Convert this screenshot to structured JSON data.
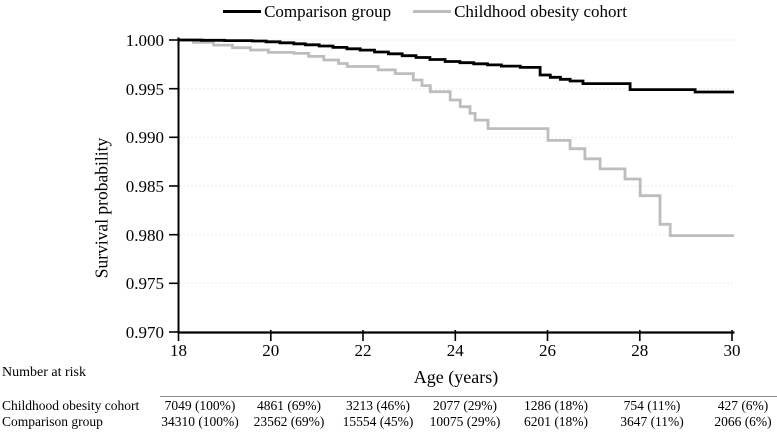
{
  "legend": [
    {
      "label": "Comparison group",
      "color": "#000000"
    },
    {
      "label": "Childhood obesity cohort",
      "color": "#bdbdbd"
    }
  ],
  "chart_data": {
    "type": "line",
    "subtype": "kaplan-meier-step",
    "title": "",
    "xlabel": "Age (years)",
    "ylabel": "Survival probability",
    "xlim": [
      18,
      30
    ],
    "ylim": [
      0.97,
      1.0
    ],
    "grid": "horizontal-dotted",
    "legend_position": "top-center",
    "x_ticks": [
      {
        "label": "18",
        "value": 18
      },
      {
        "label": "20",
        "value": 20
      },
      {
        "label": "22",
        "value": 22
      },
      {
        "label": "24",
        "value": 24
      },
      {
        "label": "26",
        "value": 26
      },
      {
        "label": "28",
        "value": 28
      },
      {
        "label": "30",
        "value": 30
      }
    ],
    "y_ticks": [
      {
        "label": "1.000",
        "value": 1.0
      },
      {
        "label": "0.995",
        "value": 0.995
      },
      {
        "label": "0.990",
        "value": 0.99
      },
      {
        "label": "0.985",
        "value": 0.985
      },
      {
        "label": "0.980",
        "value": 0.98
      },
      {
        "label": "0.975",
        "value": 0.975
      },
      {
        "label": "0.970",
        "value": 0.97
      }
    ],
    "series": [
      {
        "name": "Comparison group",
        "color": "#000000",
        "points": [
          [
            18.0,
            1.0
          ],
          [
            18.5,
            0.99997
          ],
          [
            19.0,
            0.99994
          ],
          [
            19.6,
            0.9999
          ],
          [
            19.9,
            0.99981
          ],
          [
            20.2,
            0.99971
          ],
          [
            20.5,
            0.99961
          ],
          [
            20.75,
            0.99951
          ],
          [
            21.05,
            0.99938
          ],
          [
            21.35,
            0.99924
          ],
          [
            21.65,
            0.9991
          ],
          [
            21.94,
            0.99896
          ],
          [
            22.25,
            0.99877
          ],
          [
            22.55,
            0.99858
          ],
          [
            22.85,
            0.99839
          ],
          [
            23.15,
            0.9982
          ],
          [
            23.45,
            0.998
          ],
          [
            23.78,
            0.99779
          ],
          [
            24.1,
            0.99767
          ],
          [
            24.4,
            0.99755
          ],
          [
            24.7,
            0.99744
          ],
          [
            25.0,
            0.99732
          ],
          [
            25.41,
            0.99719
          ],
          [
            25.84,
            0.9964
          ],
          [
            26.06,
            0.99617
          ],
          [
            26.28,
            0.99596
          ],
          [
            26.49,
            0.99579
          ],
          [
            26.77,
            0.99552
          ],
          [
            27.79,
            0.9949
          ],
          [
            29.2,
            0.99466
          ],
          [
            30.0,
            0.99466
          ]
        ]
      },
      {
        "name": "Childhood obesity cohort",
        "color": "#bdbdbd",
        "points": [
          [
            18.0,
            1.0
          ],
          [
            18.32,
            0.99976
          ],
          [
            18.76,
            0.99948
          ],
          [
            19.17,
            0.99921
          ],
          [
            19.56,
            0.99897
          ],
          [
            19.95,
            0.99873
          ],
          [
            20.5,
            0.99862
          ],
          [
            20.82,
            0.99831
          ],
          [
            21.15,
            0.99795
          ],
          [
            21.47,
            0.99759
          ],
          [
            21.66,
            0.99728
          ],
          [
            22.33,
            0.99693
          ],
          [
            22.7,
            0.99655
          ],
          [
            23.09,
            0.99589
          ],
          [
            23.28,
            0.99531
          ],
          [
            23.46,
            0.99469
          ],
          [
            23.89,
            0.99384
          ],
          [
            24.11,
            0.99315
          ],
          [
            24.32,
            0.99246
          ],
          [
            24.43,
            0.99177
          ],
          [
            24.71,
            0.9909
          ],
          [
            26.01,
            0.98969
          ],
          [
            26.49,
            0.98883
          ],
          [
            26.81,
            0.98779
          ],
          [
            27.14,
            0.98676
          ],
          [
            27.68,
            0.98572
          ],
          [
            28.01,
            0.984
          ],
          [
            28.44,
            0.98107
          ],
          [
            28.66,
            0.9799
          ],
          [
            30.0,
            0.9799
          ]
        ]
      }
    ]
  },
  "risk_table": {
    "title": "Number at risk",
    "ages": [
      18,
      20,
      22,
      24,
      26,
      28,
      30
    ],
    "rows": [
      {
        "label": "Childhood obesity cohort",
        "values": [
          "7049 (100%)",
          "4861 (69%)",
          "3213 (46%)",
          "2077 (29%)",
          "1286 (18%)",
          "754 (11%)",
          "427 (6%)"
        ]
      },
      {
        "label": "Comparison group",
        "values": [
          "34310 (100%)",
          "23562 (69%)",
          "15554 (45%)",
          "10075 (29%)",
          "6201 (18%)",
          "3647 (11%)",
          "2066 (6%)"
        ]
      }
    ]
  }
}
